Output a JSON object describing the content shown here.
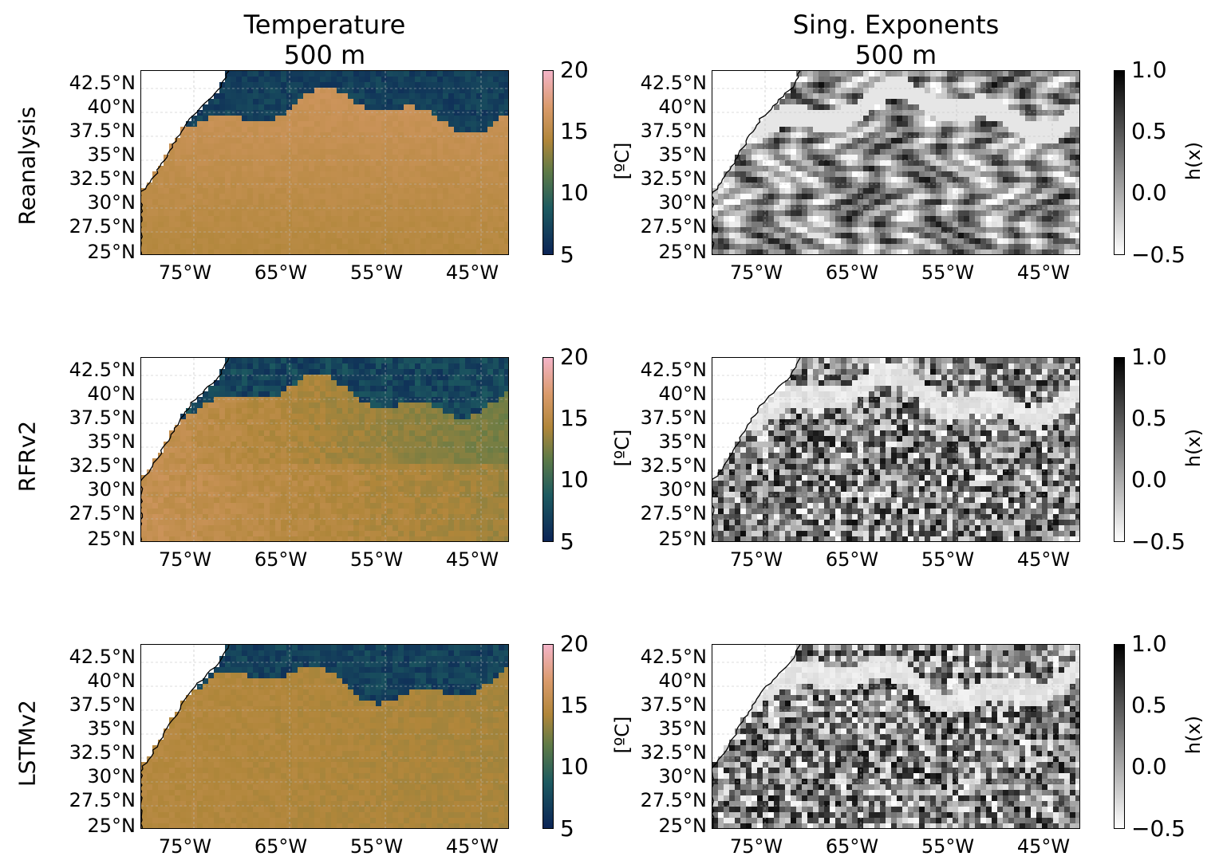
{
  "columns": [
    {
      "title_line1": "Temperature",
      "title_line2": "500 m"
    },
    {
      "title_line1": "Sing. Exponents",
      "title_line2": "500 m"
    }
  ],
  "rows": [
    {
      "label": "Reanalysis"
    },
    {
      "label": "RFRv2"
    },
    {
      "label": "LSTMv2"
    }
  ],
  "lat_ticks": [
    "42.5°N",
    "40°N",
    "37.5°N",
    "35°N",
    "32.5°N",
    "30°N",
    "27.5°N",
    "25°N"
  ],
  "lon_ticks": [
    "75°W",
    "65°W",
    "55°W",
    "45°W"
  ],
  "colorbars": {
    "temperature": {
      "label": "[ºC]",
      "ticks": [
        "20",
        "15",
        "10",
        "5"
      ],
      "range": [
        5,
        20
      ],
      "colors": [
        "#0b2456",
        "#1d5a60",
        "#5e7a47",
        "#b0863a",
        "#d99a6a",
        "#f4b4c8"
      ]
    },
    "singularity": {
      "label": "h(x)",
      "ticks": [
        "1.0",
        "0.5",
        "0.0",
        "−0.5"
      ],
      "range": [
        -0.5,
        1.0
      ],
      "colors": [
        "#ffffff",
        "#000000"
      ]
    }
  },
  "chart_data": {
    "type": "heatmap",
    "region": {
      "lon_range": [
        -80,
        -41
      ],
      "lat_range": [
        25,
        44
      ]
    },
    "panels": [
      {
        "row": "Reanalysis",
        "column": "Temperature",
        "unit": "ºC",
        "vmin": 5,
        "vmax": 20
      },
      {
        "row": "Reanalysis",
        "column": "Sing. Exponents",
        "unit": "h(x)",
        "vmin": -0.5,
        "vmax": 1.0
      },
      {
        "row": "RFRv2",
        "column": "Temperature",
        "unit": "ºC",
        "vmin": 5,
        "vmax": 20
      },
      {
        "row": "RFRv2",
        "column": "Sing. Exponents",
        "unit": "h(x)",
        "vmin": -0.5,
        "vmax": 1.0
      },
      {
        "row": "LSTMv2",
        "column": "Temperature",
        "unit": "ºC",
        "vmin": 5,
        "vmax": 20
      },
      {
        "row": "LSTMv2",
        "column": "Sing. Exponents",
        "unit": "h(x)",
        "vmin": -0.5,
        "vmax": 1.0
      }
    ]
  }
}
